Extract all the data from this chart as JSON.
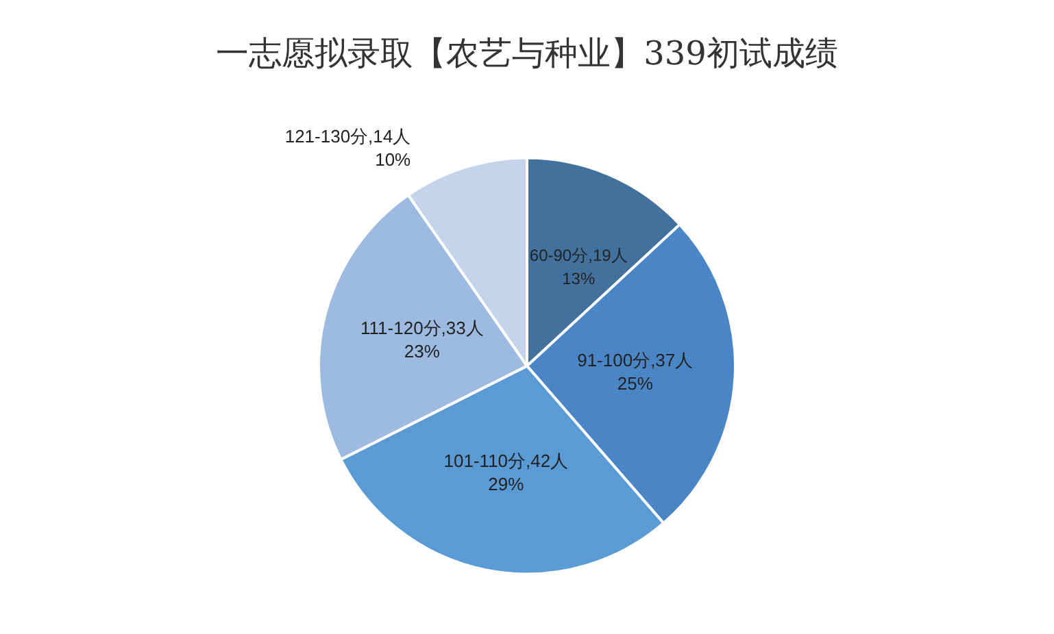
{
  "chart_data": {
    "type": "pie",
    "title": "一志愿拟录取【农艺与种业】339初试成绩",
    "categories": [
      "60-90分",
      "91-100分",
      "101-110分",
      "111-120分",
      "121-130分"
    ],
    "values": [
      19,
      37,
      42,
      33,
      14
    ],
    "colors": [
      "#41719c",
      "#4a86c5",
      "#5b9bd5",
      "#9dbbe0",
      "#c3d4eb"
    ],
    "value_labels": [
      ",19人\n13%",
      ",37人\n25%",
      ",42人\n29%",
      ",33人\n23%",
      ",14人\n10%"
    ],
    "legend": false
  }
}
